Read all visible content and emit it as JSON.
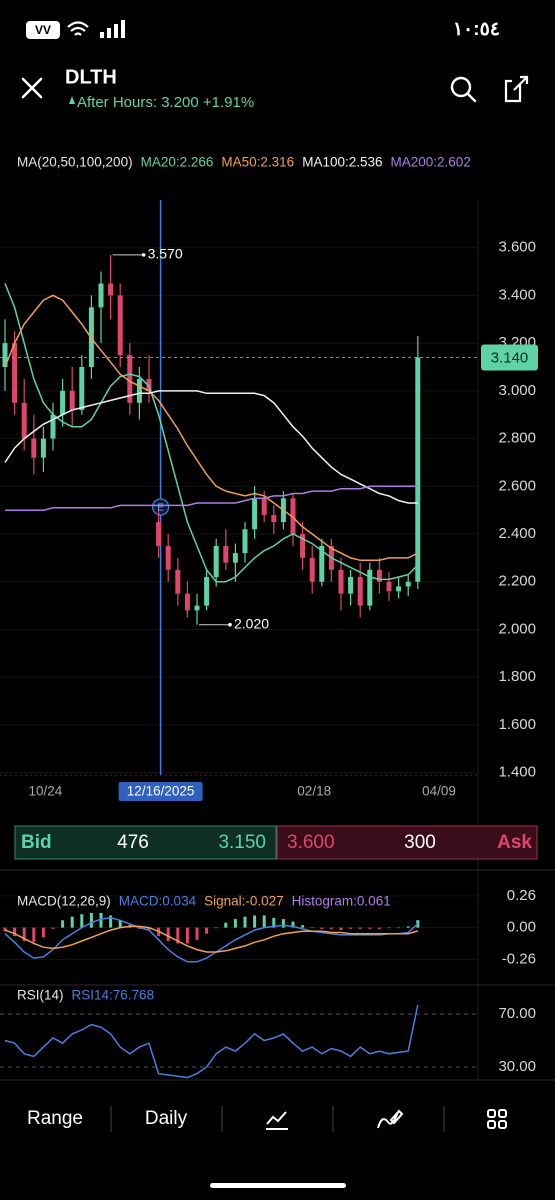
{
  "status_bar": {
    "time": "١٠:٥٤",
    "carrier": "VV"
  },
  "header": {
    "symbol": "DLTH",
    "after_hours": "After Hours: 3.200 +1.91%"
  },
  "chart_data": [
    {
      "type": "candlestick",
      "legend_title": "MA(20,50,100,200)",
      "categories": [
        null,
        null,
        null,
        null,
        "10/24",
        null,
        null,
        null,
        null,
        null,
        null,
        null,
        null,
        null,
        null,
        null,
        "12/16/2025",
        null,
        null,
        null,
        null,
        null,
        null,
        null,
        null,
        null,
        null,
        null,
        null,
        null,
        null,
        null,
        "02/18",
        null,
        null,
        null,
        null,
        null,
        null,
        null,
        null,
        null,
        null,
        null,
        null,
        "04/09"
      ],
      "crosshair": "12/16/2025",
      "event_marker": "E",
      "open": [
        3.1,
        3.2,
        2.95,
        2.8,
        2.72,
        2.8,
        2.9,
        3.0,
        2.92,
        3.1,
        3.35,
        3.45,
        3.4,
        3.15,
        2.95,
        3.05,
        2.45,
        2.35,
        2.25,
        2.15,
        2.08,
        2.1,
        2.22,
        2.35,
        2.28,
        2.32,
        2.42,
        2.55,
        2.48,
        2.45,
        2.55,
        2.4,
        2.3,
        2.2,
        2.35,
        2.25,
        2.15,
        2.22,
        2.1,
        2.25,
        2.2,
        2.16,
        2.18,
        2.2,
        null,
        null
      ],
      "high": [
        3.3,
        3.25,
        3.05,
        2.9,
        2.85,
        2.95,
        3.05,
        3.1,
        3.15,
        3.4,
        3.5,
        3.57,
        3.45,
        3.2,
        3.1,
        3.15,
        2.5,
        2.4,
        2.3,
        2.2,
        2.15,
        2.25,
        2.38,
        2.42,
        2.36,
        2.45,
        2.6,
        2.58,
        2.52,
        2.58,
        2.57,
        2.45,
        2.35,
        2.38,
        2.38,
        2.3,
        2.25,
        2.28,
        2.28,
        2.3,
        2.24,
        2.22,
        2.23,
        3.23,
        null,
        null
      ],
      "low": [
        3.0,
        2.9,
        2.75,
        2.65,
        2.66,
        2.75,
        2.85,
        2.85,
        2.9,
        3.05,
        3.2,
        3.3,
        3.1,
        2.9,
        2.88,
        2.95,
        2.3,
        2.2,
        2.1,
        2.05,
        2.02,
        2.08,
        2.18,
        2.25,
        2.2,
        2.28,
        2.38,
        2.45,
        2.4,
        2.42,
        2.35,
        2.25,
        2.15,
        2.18,
        2.2,
        2.08,
        2.1,
        2.05,
        2.08,
        2.15,
        2.12,
        2.13,
        2.14,
        2.17,
        null,
        null
      ],
      "close": [
        3.2,
        2.95,
        2.8,
        2.72,
        2.8,
        2.9,
        3.0,
        2.92,
        3.1,
        3.35,
        3.45,
        3.4,
        3.15,
        2.95,
        3.05,
        3.0,
        2.35,
        2.25,
        2.15,
        2.08,
        2.1,
        2.22,
        2.35,
        2.28,
        2.32,
        2.42,
        2.55,
        2.48,
        2.45,
        2.55,
        2.4,
        2.3,
        2.2,
        2.35,
        2.25,
        2.15,
        2.22,
        2.1,
        2.25,
        2.2,
        2.16,
        2.18,
        2.2,
        3.14,
        null,
        null
      ],
      "up_color": "#5ed3a6",
      "down_color": "#e0456b",
      "high_label": "3.570",
      "low_label": "2.020",
      "last_price": {
        "value": 3.14,
        "label": "3.140"
      },
      "series": [
        {
          "name": "MA20:2.266",
          "color": "#5ed3a6",
          "values": [
            3.45,
            3.35,
            3.2,
            3.05,
            2.95,
            2.9,
            2.87,
            2.85,
            2.85,
            2.88,
            2.95,
            3.02,
            3.06,
            3.07,
            3.06,
            3.02,
            2.9,
            2.75,
            2.6,
            2.45,
            2.35,
            2.25,
            2.2,
            2.2,
            2.22,
            2.26,
            2.3,
            2.33,
            2.35,
            2.38,
            2.4,
            2.38,
            2.36,
            2.33,
            2.3,
            2.28,
            2.26,
            2.24,
            2.22,
            2.21,
            2.21,
            2.22,
            2.23,
            2.27,
            null,
            null
          ]
        },
        {
          "name": "MA50:2.316",
          "color": "#f0a050",
          "values": [
            3.1,
            3.2,
            3.28,
            3.33,
            3.38,
            3.4,
            3.38,
            3.33,
            3.28,
            3.22,
            3.17,
            3.12,
            3.07,
            3.04,
            3.02,
            3.0,
            2.96,
            2.9,
            2.84,
            2.77,
            2.71,
            2.65,
            2.6,
            2.58,
            2.57,
            2.56,
            2.57,
            2.56,
            2.53,
            2.5,
            2.47,
            2.43,
            2.4,
            2.37,
            2.34,
            2.32,
            2.3,
            2.29,
            2.29,
            2.29,
            2.3,
            2.3,
            2.3,
            2.32,
            null,
            null
          ]
        },
        {
          "name": "MA100:2.536",
          "color": "#f2f2f2",
          "values": [
            2.7,
            2.76,
            2.8,
            2.83,
            2.86,
            2.88,
            2.9,
            2.92,
            2.93,
            2.94,
            2.95,
            2.96,
            2.97,
            2.98,
            2.99,
            2.99,
            3.0,
            3.0,
            3.0,
            3.0,
            3.0,
            2.99,
            2.99,
            2.99,
            2.99,
            2.99,
            2.99,
            2.98,
            2.95,
            2.9,
            2.85,
            2.81,
            2.76,
            2.72,
            2.68,
            2.65,
            2.63,
            2.61,
            2.59,
            2.57,
            2.56,
            2.54,
            2.53,
            2.53,
            null,
            null
          ]
        },
        {
          "name": "MA200:2.602",
          "color": "#b07ce8",
          "values": [
            2.5,
            2.5,
            2.5,
            2.5,
            2.5,
            2.51,
            2.51,
            2.51,
            2.51,
            2.51,
            2.51,
            2.51,
            2.52,
            2.52,
            2.52,
            2.52,
            2.52,
            2.52,
            2.52,
            2.52,
            2.53,
            2.53,
            2.53,
            2.53,
            2.53,
            2.54,
            2.55,
            2.55,
            2.56,
            2.56,
            2.57,
            2.57,
            2.58,
            2.58,
            2.58,
            2.59,
            2.59,
            2.59,
            2.6,
            2.6,
            2.6,
            2.6,
            2.6,
            2.6,
            null,
            null
          ]
        }
      ],
      "ylim": [
        1.39,
        3.8
      ],
      "yticks": [
        {
          "value": 3.6,
          "label": "3.600"
        },
        {
          "value": 3.4,
          "label": "3.400"
        },
        {
          "value": 3.2,
          "label": "3.200"
        },
        {
          "value": 3.0,
          "label": "3.000"
        },
        {
          "value": 2.8,
          "label": "2.800"
        },
        {
          "value": 2.6,
          "label": "2.600"
        },
        {
          "value": 2.4,
          "label": "2.400"
        },
        {
          "value": 2.2,
          "label": "2.200"
        },
        {
          "value": 2.0,
          "label": "2.000"
        },
        {
          "value": 1.8,
          "label": "1.800"
        },
        {
          "value": 1.6,
          "label": "1.600"
        },
        {
          "value": 1.4,
          "label": "1.400"
        }
      ]
    },
    {
      "type": "macd",
      "title": "MACD(12,26,9)",
      "up_color": "#5ed3a6",
      "down_color": "#e0456b",
      "series": [
        {
          "name": "MACD:0.034",
          "color": "#4a7fe0",
          "values": [
            -0.05,
            -0.12,
            -0.2,
            -0.25,
            -0.24,
            -0.18,
            -0.1,
            -0.05,
            0.0,
            0.04,
            0.07,
            0.08,
            0.06,
            0.03,
            0.0,
            -0.02,
            -0.1,
            -0.18,
            -0.24,
            -0.28,
            -0.28,
            -0.25,
            -0.2,
            -0.15,
            -0.1,
            -0.06,
            -0.02,
            0.0,
            0.01,
            0.02,
            0.01,
            -0.01,
            -0.03,
            -0.04,
            -0.05,
            -0.06,
            -0.06,
            -0.06,
            -0.06,
            -0.06,
            -0.05,
            -0.05,
            -0.04,
            0.034,
            null,
            null
          ]
        },
        {
          "name": "Signal:-0.027",
          "color": "#f0a050",
          "values": [
            -0.02,
            -0.05,
            -0.09,
            -0.13,
            -0.16,
            -0.17,
            -0.16,
            -0.14,
            -0.11,
            -0.08,
            -0.05,
            -0.02,
            0.0,
            0.01,
            0.01,
            0.0,
            -0.03,
            -0.07,
            -0.11,
            -0.15,
            -0.18,
            -0.2,
            -0.2,
            -0.19,
            -0.17,
            -0.15,
            -0.12,
            -0.1,
            -0.07,
            -0.05,
            -0.04,
            -0.03,
            -0.03,
            -0.03,
            -0.04,
            -0.04,
            -0.05,
            -0.05,
            -0.05,
            -0.05,
            -0.05,
            -0.05,
            -0.05,
            -0.027,
            null,
            null
          ]
        },
        {
          "name": "Histogram:0.061",
          "color": "#b07ce8",
          "style": "bars",
          "values": [
            -0.03,
            -0.07,
            -0.11,
            -0.12,
            -0.08,
            -0.01,
            0.06,
            0.09,
            0.11,
            0.12,
            0.12,
            0.1,
            0.06,
            0.02,
            -0.01,
            -0.02,
            -0.07,
            -0.11,
            -0.13,
            -0.13,
            -0.1,
            -0.05,
            0.0,
            0.04,
            0.07,
            0.09,
            0.1,
            0.1,
            0.08,
            0.07,
            0.05,
            0.02,
            0.0,
            -0.01,
            -0.01,
            -0.02,
            -0.01,
            -0.01,
            -0.01,
            -0.01,
            0.0,
            0.0,
            0.01,
            0.061,
            null,
            null
          ]
        }
      ],
      "ylim": [
        -0.47,
        0.39
      ],
      "yticks": [
        0.26,
        {
          "value": 0,
          "label": "0.00"
        },
        -0.26
      ]
    },
    {
      "type": "line",
      "title": "RSI(14)",
      "grid": "dashed",
      "series": [
        {
          "name": "RSI14:76.768",
          "color": "#4a7fe0",
          "values": [
            50,
            48,
            40,
            38,
            45,
            52,
            48,
            55,
            58,
            62,
            60,
            55,
            45,
            40,
            45,
            48,
            25,
            24,
            23,
            22,
            25,
            30,
            40,
            45,
            42,
            48,
            55,
            50,
            52,
            55,
            48,
            42,
            45,
            40,
            44,
            42,
            38,
            45,
            40,
            42,
            40,
            41,
            42,
            76.768,
            null,
            null
          ]
        }
      ],
      "ylim": [
        20.2,
        91.9
      ],
      "yticks": [
        {
          "value": 70,
          "label": "70.00"
        },
        {
          "value": 30,
          "label": "30.00"
        }
      ]
    }
  ],
  "quote": {
    "bid_label": "Bid",
    "bid_size": "476",
    "bid_price": "3.150",
    "ask_price": "3.600",
    "ask_size": "300",
    "ask_label": "Ask"
  },
  "toolbar": {
    "items": [
      "Range",
      "Daily"
    ]
  }
}
